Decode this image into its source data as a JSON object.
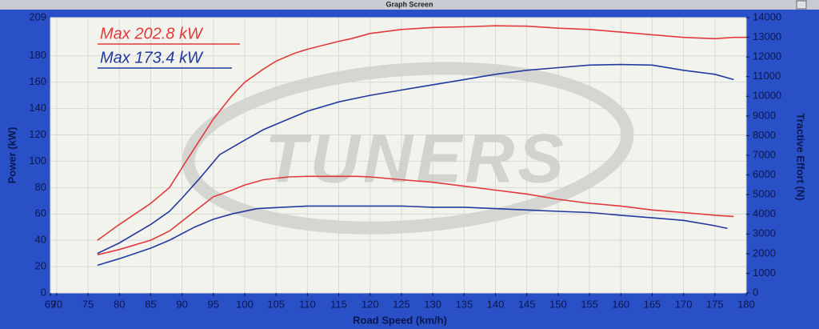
{
  "chart_data": {
    "type": "line",
    "title": "Graph Screen",
    "watermark": "TUNERS",
    "annotations": [
      {
        "text": "Max 202.8 kW",
        "color": "#e23a3a"
      },
      {
        "text": "Max 173.4 kW",
        "color": "#23399e"
      }
    ],
    "xlabel": "Road Speed (km/h)",
    "ylabel": "Power (kW)",
    "y2label": "Tractive Effort (N)",
    "xlim": [
      69,
      180
    ],
    "xticks": [
      69,
      70,
      75,
      80,
      85,
      90,
      95,
      100,
      105,
      110,
      115,
      120,
      125,
      130,
      135,
      140,
      145,
      150,
      155,
      160,
      165,
      170,
      175,
      180
    ],
    "ylim": [
      0,
      209
    ],
    "yticks": [
      0,
      20,
      40,
      60,
      80,
      100,
      120,
      140,
      160,
      180,
      209
    ],
    "y2lim": [
      0,
      14000
    ],
    "y2ticks": [
      0,
      1000,
      2000,
      3000,
      4000,
      5000,
      6000,
      7000,
      8000,
      9000,
      10000,
      11000,
      12000,
      13000,
      14000
    ],
    "grid": true,
    "series": [
      {
        "color": "#e23a3a",
        "x": [
          76.5,
          80,
          85,
          88,
          90,
          92,
          95,
          98,
          100,
          103,
          105,
          108,
          110,
          115,
          117,
          120,
          125,
          130,
          135,
          140,
          145,
          150,
          155,
          160,
          165,
          170,
          175,
          178,
          180
        ],
        "values": [
          40,
          52,
          68,
          80,
          95,
          110,
          132,
          150,
          160,
          170,
          176,
          182,
          185,
          191,
          193,
          197,
          200,
          201.5,
          202,
          202.8,
          202.5,
          201,
          200,
          198,
          196,
          194,
          193,
          194,
          194
        ]
      },
      {
        "color": "#23399e",
        "x": [
          76.5,
          80,
          85,
          88,
          90,
          93,
          96,
          100,
          103,
          106,
          110,
          115,
          120,
          125,
          130,
          135,
          140,
          145,
          150,
          155,
          160,
          165,
          170,
          175,
          178
        ],
        "values": [
          30,
          38,
          52,
          62,
          72,
          88,
          105,
          116,
          124,
          130,
          138,
          145,
          150,
          154,
          158,
          162,
          166,
          169,
          171,
          173,
          173.4,
          173,
          169,
          166,
          162
        ]
      },
      {
        "color": "#e23a3a",
        "axis": "y2",
        "x": [
          76.5,
          80,
          85,
          88,
          92,
          95,
          98,
          100,
          103,
          107,
          110,
          115,
          118,
          120,
          125,
          130,
          135,
          140,
          145,
          150,
          155,
          160,
          165,
          170,
          175,
          178
        ],
        "values": [
          1940,
          2210,
          2680,
          3150,
          4150,
          4890,
          5230,
          5490,
          5760,
          5900,
          5930,
          5930,
          5930,
          5900,
          5760,
          5630,
          5430,
          5230,
          5030,
          4760,
          4560,
          4420,
          4220,
          4090,
          3950,
          3890
        ]
      },
      {
        "color": "#23399e",
        "axis": "y2",
        "x": [
          76.5,
          80,
          85,
          88,
          92,
          95,
          98,
          102,
          106,
          110,
          115,
          120,
          125,
          130,
          135,
          140,
          145,
          150,
          155,
          160,
          165,
          170,
          175,
          177
        ],
        "values": [
          1410,
          1740,
          2280,
          2680,
          3350,
          3750,
          4020,
          4290,
          4360,
          4420,
          4420,
          4420,
          4420,
          4360,
          4360,
          4290,
          4220,
          4150,
          4090,
          3950,
          3820,
          3690,
          3420,
          3280
        ]
      }
    ]
  }
}
